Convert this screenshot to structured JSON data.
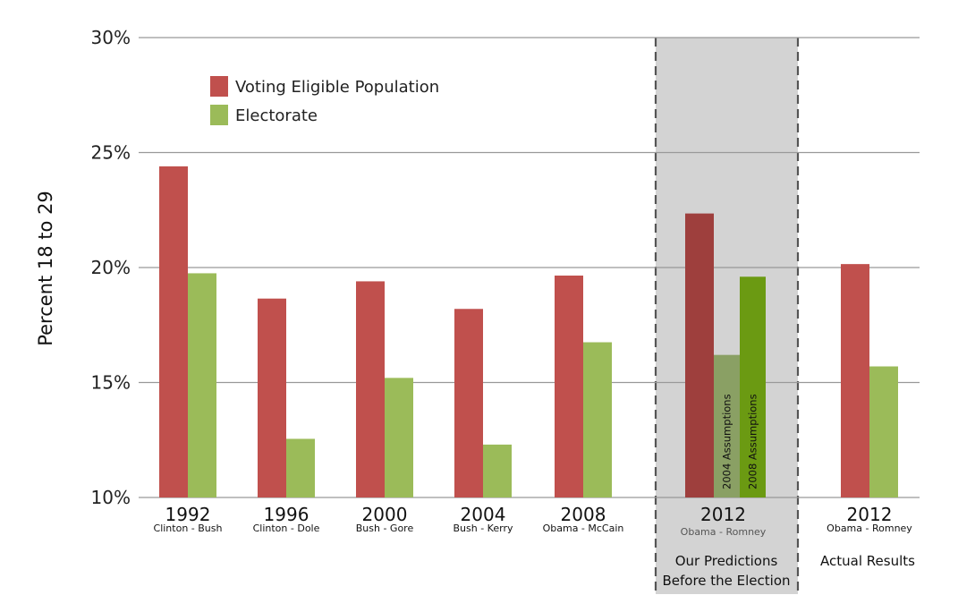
{
  "chart_data": {
    "type": "bar",
    "title": "",
    "xlabel": "",
    "ylabel": "Percent 18 to 29",
    "ylim": [
      10,
      30
    ],
    "y_ticks": [
      "10%",
      "15%",
      "20%",
      "25%",
      "30%"
    ],
    "legend": [
      {
        "name": "Voting Eligible Population",
        "color": "#c0504d"
      },
      {
        "name": "Electorate",
        "color": "#9bbb59"
      }
    ],
    "groups": [
      {
        "year": "1992",
        "matchup": "Clinton - Bush",
        "vep": 24.4,
        "electorate": 19.75
      },
      {
        "year": "1996",
        "matchup": "Clinton - Dole",
        "vep": 18.65,
        "electorate": 12.55
      },
      {
        "year": "2000",
        "matchup": "Bush - Gore",
        "vep": 19.4,
        "electorate": 15.2
      },
      {
        "year": "2004",
        "matchup": "Bush - Kerry",
        "vep": 18.2,
        "electorate": 12.3
      },
      {
        "year": "2008",
        "matchup": "Obama - McCain",
        "vep": 19.65,
        "electorate": 16.75
      },
      {
        "year": "2012",
        "matchup": "Obama - Romney",
        "vep": 22.35,
        "predictions": [
          {
            "label": "2004 Assumptions",
            "value": 16.2
          },
          {
            "label": "2008 Assumptions",
            "value": 19.6
          }
        ],
        "note_lines": [
          "Our Predictions",
          "Before the Election"
        ]
      },
      {
        "year": "2012",
        "matchup": "Obama - Romney",
        "vep": 20.15,
        "electorate": 15.7,
        "note_lines": [
          "Actual Results"
        ]
      }
    ]
  },
  "colors": {
    "vep": "#c0504d",
    "electorate": "#9bbb59",
    "vep_dark": "#9e3f3d",
    "pred_2004": "#8aa064",
    "pred_2008": "#6b9a12",
    "shade": "#d3d3d3",
    "grid": "#999999"
  }
}
